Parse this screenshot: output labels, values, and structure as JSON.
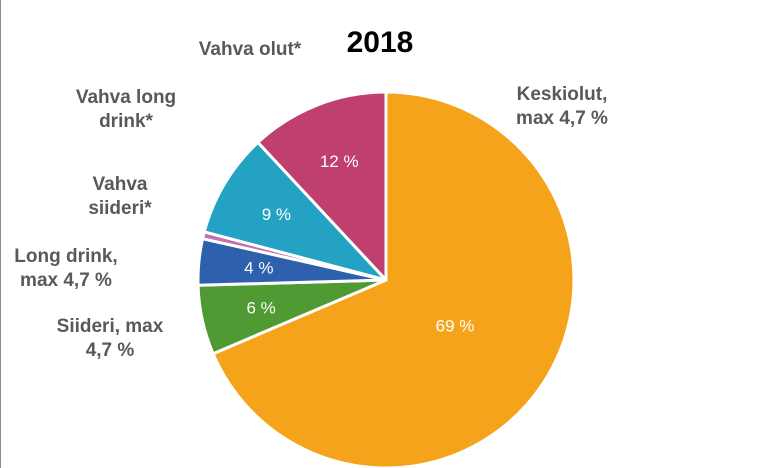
{
  "chart_data": {
    "type": "pie",
    "title": "2018",
    "slices": [
      {
        "label": "Keskiolut,\nmax 4,7 %",
        "value": 69,
        "value_label": "69 %",
        "color": "#f5a31b"
      },
      {
        "label": "Siideri,  max\n4,7 %",
        "value": 6,
        "value_label": "6 %",
        "color": "#4f9a32"
      },
      {
        "label": "Long drink,\nmax 4,7 %",
        "value": 4,
        "value_label": "4 %",
        "color": "#2e61ad"
      },
      {
        "label": "",
        "value": 0.6,
        "value_label": "",
        "color": "#c46fb3"
      },
      {
        "label": "Vahva\nsiideri*",
        "value": 9,
        "value_label": "9 %",
        "color": "#24a2c4"
      },
      {
        "label": "Vahva long\ndrink*",
        "value": 0,
        "value_label": "",
        "color": ""
      },
      {
        "label": "Vahva  olut*",
        "value": 12,
        "value_label": "12 %",
        "color": "#bf3f6f"
      }
    ],
    "legend": "none"
  }
}
